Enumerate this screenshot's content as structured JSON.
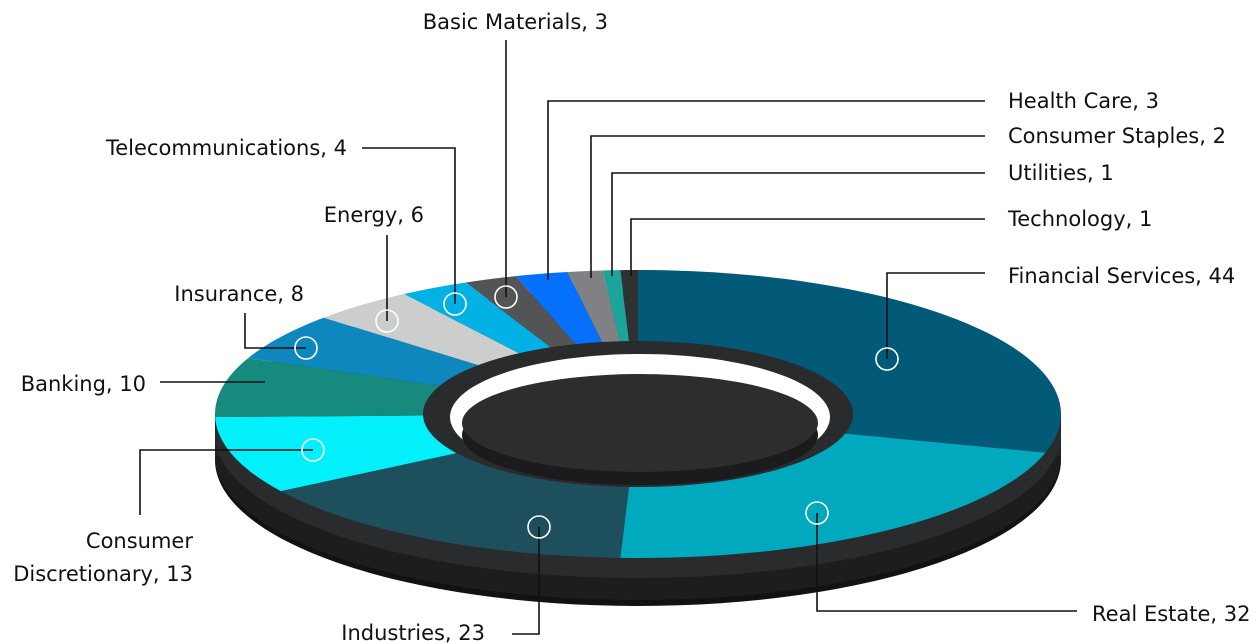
{
  "chart_data": {
    "type": "pie",
    "variant": "3d-donut",
    "title": "",
    "slices": [
      {
        "label": "Financial Services",
        "display": "Financial Services, 44",
        "value": 44,
        "color": "#035A78"
      },
      {
        "label": "Real Estate",
        "display": "Real Estate, 32",
        "value": 32,
        "color": "#01A9BE"
      },
      {
        "label": "Industries",
        "display": "Industries, 23",
        "value": 23,
        "color": "#1D4F5C"
      },
      {
        "label": "Consumer Discretionary",
        "display_lines": [
          "Consumer",
          "Discretionary, 13"
        ],
        "value": 13,
        "color": "#02F0FB"
      },
      {
        "label": "Banking",
        "display": "Banking, 10",
        "value": 10,
        "color": "#168A7D"
      },
      {
        "label": "Insurance",
        "display": "Insurance, 8",
        "value": 8,
        "color": "#0E87BF"
      },
      {
        "label": "Energy",
        "display": "Energy, 6",
        "value": 6,
        "color": "#CCCECE"
      },
      {
        "label": "Telecommunications",
        "display": "Telecommunications, 4",
        "value": 4,
        "color": "#02B1E3"
      },
      {
        "label": "Basic Materials",
        "display": "Basic Materials, 3",
        "value": 3,
        "color": "#535455"
      },
      {
        "label": "Health Care",
        "display": "Health Care, 3",
        "value": 3,
        "color": "#0470FB"
      },
      {
        "label": "Consumer Staples",
        "display": "Consumer Staples, 2",
        "value": 2,
        "color": "#808183"
      },
      {
        "label": "Utilities",
        "display": "Utilities, 1",
        "value": 1,
        "color": "#1BA59A"
      },
      {
        "label": "Technology",
        "display": "Technology, 1",
        "value": 1,
        "color": "#2F3133"
      }
    ],
    "legend": "none",
    "grid": false
  }
}
